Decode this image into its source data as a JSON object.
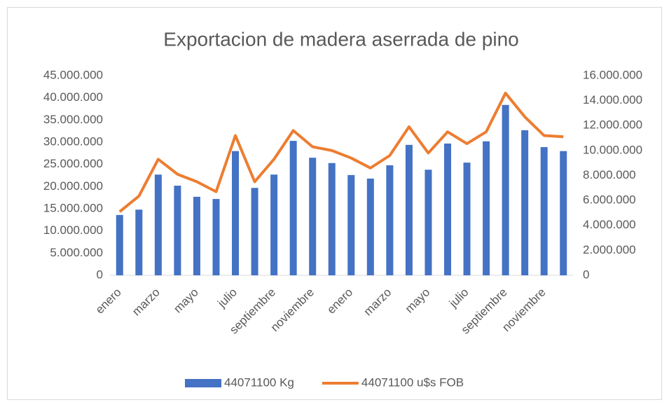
{
  "chart_data": {
    "type": "bar_line",
    "title": "Exportacion de madera aserrada de pino",
    "categories": [
      "enero",
      null,
      "marzo",
      null,
      "mayo",
      null,
      "julio",
      null,
      "septiembre",
      null,
      "noviembre",
      null,
      "enero",
      null,
      "marzo",
      null,
      "mayo",
      null,
      "julio",
      null,
      "septiembre",
      null,
      "noviembre",
      null
    ],
    "series": [
      {
        "name": "44071100 Kg",
        "type": "bar",
        "color": "#4472c4",
        "axis": "y",
        "values": [
          13600000,
          14800000,
          22700000,
          20200000,
          17700000,
          17200000,
          28000000,
          19700000,
          22700000,
          30300000,
          26500000,
          25300000,
          22600000,
          21800000,
          24800000,
          29400000,
          23800000,
          29700000,
          25400000,
          30200000,
          38400000,
          32700000,
          28900000,
          28000000
        ]
      },
      {
        "name": "44071100 u$s FOB",
        "type": "line",
        "color": "#ed7d31",
        "axis": "y2",
        "values": [
          5100000,
          6350000,
          9300000,
          8100000,
          7500000,
          6700000,
          11200000,
          7500000,
          9300000,
          11600000,
          10300000,
          10000000,
          9400000,
          8600000,
          9600000,
          11900000,
          9800000,
          11500000,
          10550000,
          11500000,
          14600000,
          12700000,
          11200000,
          11100000
        ]
      }
    ],
    "ylim": [
      0,
      45000000
    ],
    "yticks": [
      0,
      {
        "value": 5000000,
        "label": "5.000.000"
      },
      {
        "value": 10000000,
        "label": "10.000.000"
      },
      {
        "value": 15000000,
        "label": "15.000.000"
      },
      {
        "value": 20000000,
        "label": "20.000.000"
      },
      {
        "value": 25000000,
        "label": "25.000.000"
      },
      {
        "value": 30000000,
        "label": "30.000.000"
      },
      {
        "value": 35000000,
        "label": "35.000.000"
      },
      {
        "value": 40000000,
        "label": "40.000.000"
      },
      {
        "value": 45000000,
        "label": "45.000.000"
      }
    ],
    "y2lim": [
      0,
      16000000
    ],
    "y2ticks": [
      0,
      {
        "value": 2000000,
        "label": "2.000.000"
      },
      {
        "value": 4000000,
        "label": "4.000.000"
      },
      {
        "value": 6000000,
        "label": "6.000.000"
      },
      {
        "value": 8000000,
        "label": "8.000.000"
      },
      {
        "value": 10000000,
        "label": "10.000.000"
      },
      {
        "value": 12000000,
        "label": "12.000.000"
      },
      {
        "value": 14000000,
        "label": "14.000.000"
      },
      {
        "value": 16000000,
        "label": "16.000.000"
      }
    ],
    "legend": "bottom"
  }
}
